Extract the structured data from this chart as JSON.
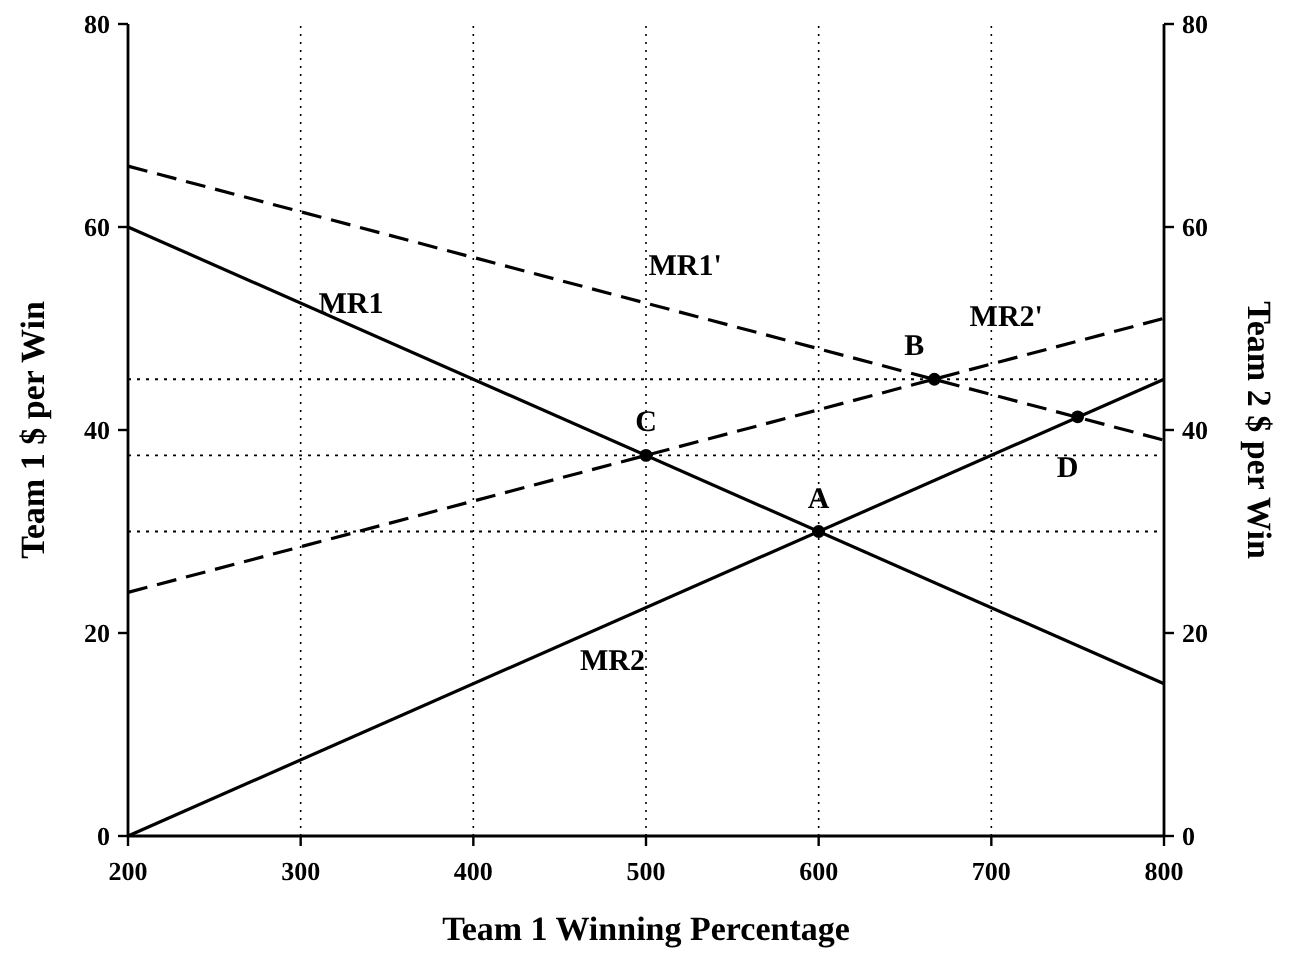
{
  "chart_data": {
    "type": "line",
    "xlabel": "Team 1 Winning Percentage",
    "ylabel": "Team 1 $ per Win",
    "y2label": "Team 2 $ per Win",
    "xlim": [
      200,
      800
    ],
    "xticks": [
      200,
      300,
      400,
      500,
      600,
      700,
      800
    ],
    "ylim": [
      0,
      80
    ],
    "yticks": [
      0,
      20,
      40,
      60,
      80
    ],
    "y2lim": [
      0,
      80
    ],
    "y2ticks": [
      0,
      20,
      40,
      60,
      80
    ],
    "grid": "x",
    "marker": "none",
    "series": [
      {
        "name": "MR1",
        "color": "#000000",
        "x": [
          200,
          800
        ],
        "values": [
          60,
          15
        ],
        "line_style": "solid"
      },
      {
        "name": "MR2",
        "color": "#000000",
        "x": [
          200,
          800
        ],
        "values": [
          0,
          45
        ],
        "line_style": "solid"
      },
      {
        "name": "MR1'",
        "color": "#000000",
        "x": [
          200,
          800
        ],
        "values": [
          66,
          39
        ],
        "line_style": "dashed"
      },
      {
        "name": "MR2'",
        "color": "#000000",
        "x": [
          200,
          800
        ],
        "values": [
          24,
          51
        ],
        "line_style": "dashed"
      },
      {
        "type": "scatter",
        "color": "#000000",
        "marker": "circle",
        "x": [
          600,
          667,
          500,
          750
        ],
        "values": [
          30,
          45,
          37.5,
          41.3
        ]
      }
    ],
    "ref_lines": [
      {
        "axis": "y",
        "value": 45,
        "line_style": "dotted"
      },
      {
        "axis": "y",
        "value": 37.5,
        "line_style": "dotted"
      },
      {
        "axis": "y",
        "value": 30,
        "line_style": "dotted"
      }
    ],
    "annotations": [
      {
        "text": "A",
        "x": 600,
        "y": 30
      },
      {
        "text": "B",
        "x": 667,
        "y": 45
      },
      {
        "text": "C",
        "x": 500,
        "y": 37.5
      },
      {
        "text": "D",
        "x": 750,
        "y": 41.3
      }
    ]
  }
}
